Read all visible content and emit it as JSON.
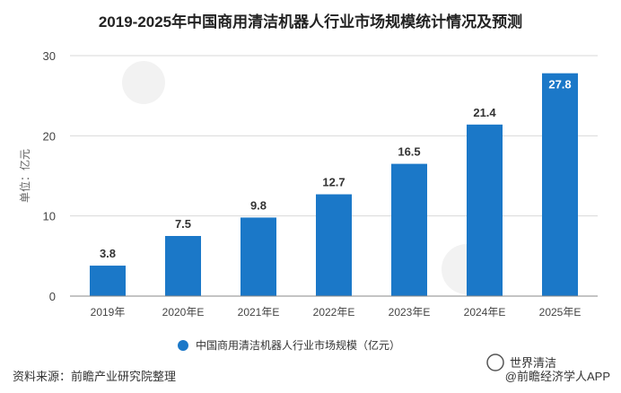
{
  "title": "2019-2025年中国商用清洁机器人行业市场规模统计情况及预测",
  "y_axis_label": "单位：亿元",
  "legend_label": "中国商用清洁机器人行业市场规模（亿元）",
  "source": "资料来源：前瞻产业研究院整理",
  "watermark_right": "@前瞻经济学人APP",
  "wechat_badge": "世界清洁",
  "colors": {
    "bar": "#1b78c8",
    "grid": "#d9d9d9",
    "axis": "#888888"
  },
  "chart_data": {
    "type": "bar",
    "categories": [
      "2019年",
      "2020年E",
      "2021年E",
      "2022年E",
      "2023年E",
      "2024年E",
      "2025年E"
    ],
    "series": [
      {
        "name": "中国商用清洁机器人行业市场规模（亿元）",
        "values": [
          3.8,
          7.5,
          9.8,
          12.7,
          16.5,
          21.4,
          27.8
        ]
      }
    ],
    "ylim": [
      0,
      30
    ],
    "yticks": [
      0,
      10,
      20,
      30
    ],
    "data_labels": [
      "3.8",
      "7.5",
      "9.8",
      "12.7",
      "16.5",
      "21.4",
      "27.8"
    ],
    "grid": true,
    "legend_position": "bottom"
  }
}
